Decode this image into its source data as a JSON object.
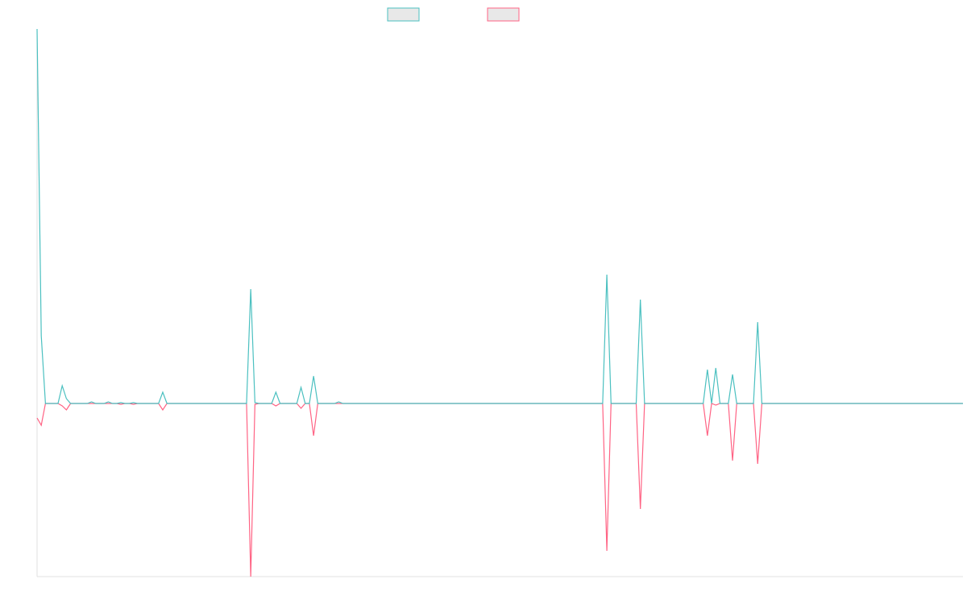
{
  "chart_data": {
    "type": "line",
    "legend": "top",
    "x": [
      0,
      1,
      2,
      5,
      6,
      7,
      8,
      12,
      13,
      14,
      16,
      17,
      18,
      19,
      20,
      21,
      22,
      23,
      24,
      29,
      30,
      31,
      50,
      51,
      52,
      53,
      56,
      57,
      58,
      62,
      63,
      64,
      65,
      66,
      67,
      71,
      72,
      73,
      135,
      136,
      137,
      143,
      144,
      145,
      159,
      160,
      161,
      162,
      163,
      165,
      166,
      167,
      171,
      172,
      173,
      221
    ],
    "xlim": [
      0,
      221
    ],
    "ylim": [
      -215,
      465
    ],
    "series": [
      {
        "color": "#ff6384",
        "values": [
          -18,
          -27,
          0,
          0,
          -3,
          -8,
          0,
          0,
          0,
          0,
          0,
          0,
          0,
          0,
          -1,
          0,
          0,
          -1,
          0,
          0,
          -8,
          0,
          0,
          -215,
          -1,
          0,
          0,
          -3,
          0,
          0,
          -6,
          0,
          0,
          -40,
          0,
          0,
          0,
          0,
          0,
          -183,
          0,
          0,
          -131,
          0,
          0,
          -40,
          0,
          -2,
          0,
          0,
          -71,
          0,
          0,
          -75,
          0,
          0
        ]
      },
      {
        "color": "#4bc0c0",
        "values": [
          465,
          84,
          0,
          0,
          22,
          6,
          0,
          0,
          2,
          0,
          0,
          2,
          0,
          0,
          1,
          0,
          0,
          1,
          0,
          0,
          14,
          0,
          0,
          142,
          1,
          0,
          0,
          14,
          0,
          0,
          20,
          0,
          0,
          34,
          0,
          0,
          2,
          0,
          0,
          160,
          0,
          0,
          129,
          0,
          0,
          42,
          0,
          44,
          0,
          0,
          36,
          0,
          0,
          101,
          0,
          0
        ]
      }
    ]
  }
}
